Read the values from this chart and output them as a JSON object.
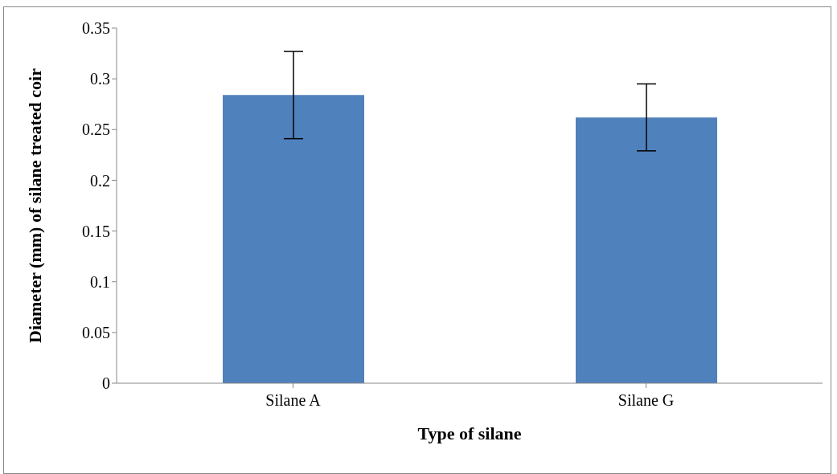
{
  "chart_data": {
    "type": "bar",
    "xlabel": "Type of silane",
    "ylabel": "Diameter (mm) of silane treated coir",
    "categories": [
      "Silane A",
      "Silane G"
    ],
    "values": [
      0.284,
      0.262
    ],
    "errors": [
      0.043,
      0.033
    ],
    "color": "#4f81bd",
    "ylim": [
      0,
      0.35
    ],
    "yticks": [
      0,
      0.05,
      0.1,
      0.15,
      0.2,
      0.25,
      0.3,
      0.35
    ]
  }
}
